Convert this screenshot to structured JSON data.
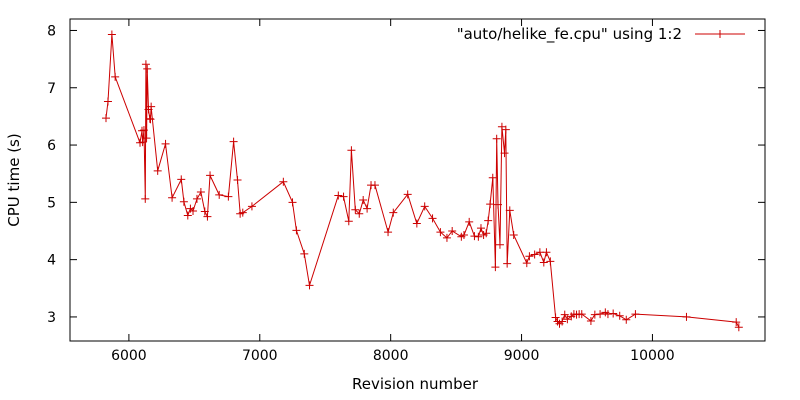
{
  "chart_data": {
    "type": "line",
    "title": "",
    "xlabel": "Revision number",
    "ylabel": "CPU time (s)",
    "xlim": [
      5550,
      10860
    ],
    "ylim": [
      2.58,
      8.2
    ],
    "x_ticks": [
      6000,
      7000,
      8000,
      9000,
      10000
    ],
    "y_ticks": [
      3,
      4,
      5,
      6,
      7,
      8
    ],
    "grid": false,
    "legend_position": "top-right",
    "series": [
      {
        "name": "\"auto/helike_fe.cpu\" using 1:2",
        "color": "#cc0000",
        "marker": "plus",
        "x": [
          5825,
          5840,
          5870,
          5895,
          6085,
          6100,
          6105,
          6115,
          6125,
          6130,
          6135,
          6140,
          6150,
          6160,
          6165,
          6170,
          6220,
          6280,
          6330,
          6400,
          6420,
          6450,
          6470,
          6490,
          6520,
          6550,
          6580,
          6600,
          6620,
          6690,
          6760,
          6800,
          6830,
          6850,
          6870,
          6940,
          7180,
          7250,
          7280,
          7340,
          7380,
          7600,
          7640,
          7680,
          7700,
          7730,
          7760,
          7790,
          7820,
          7850,
          7880,
          7980,
          8020,
          8130,
          8200,
          8260,
          8320,
          8380,
          8430,
          8470,
          8540,
          8560,
          8600,
          8640,
          8670,
          8690,
          8710,
          8730,
          8745,
          8760,
          8780,
          8800,
          8810,
          8820,
          8835,
          8850,
          8870,
          8880,
          8890,
          8910,
          8940,
          9040,
          9060,
          9100,
          9140,
          9170,
          9190,
          9220,
          9260,
          9275,
          9290,
          9310,
          9330,
          9350,
          9380,
          9400,
          9420,
          9440,
          9460,
          9530,
          9560,
          9600,
          9640,
          9660,
          9700,
          9750,
          9800,
          9870,
          10260,
          10640,
          10660
        ],
        "y": [
          6.47,
          6.76,
          7.93,
          7.19,
          6.04,
          6.25,
          6.05,
          6.26,
          5.06,
          7.41,
          6.12,
          7.33,
          6.62,
          6.46,
          6.45,
          6.67,
          5.55,
          6.02,
          5.08,
          5.4,
          5.01,
          4.77,
          4.89,
          4.85,
          5.06,
          5.18,
          4.84,
          4.75,
          5.47,
          5.13,
          5.1,
          6.06,
          5.39,
          4.8,
          4.82,
          4.93,
          5.36,
          5.0,
          4.51,
          4.1,
          3.55,
          5.12,
          5.1,
          4.67,
          5.91,
          4.87,
          4.8,
          5.04,
          4.89,
          5.3,
          5.3,
          4.48,
          4.82,
          5.14,
          4.63,
          4.93,
          4.72,
          4.48,
          4.38,
          4.5,
          4.4,
          4.43,
          4.66,
          4.41,
          4.4,
          4.55,
          4.43,
          4.46,
          4.68,
          4.97,
          5.43,
          3.87,
          6.11,
          4.96,
          4.26,
          6.32,
          5.86,
          6.27,
          3.93,
          4.86,
          4.43,
          3.94,
          4.06,
          4.09,
          4.13,
          3.95,
          4.13,
          3.97,
          2.99,
          2.92,
          2.88,
          2.92,
          3.04,
          2.96,
          3.01,
          3.05,
          3.04,
          3.05,
          3.05,
          2.93,
          3.04,
          3.05,
          3.08,
          3.05,
          3.06,
          3.02,
          2.95,
          3.05,
          3.0,
          2.91,
          2.82
        ]
      }
    ]
  }
}
